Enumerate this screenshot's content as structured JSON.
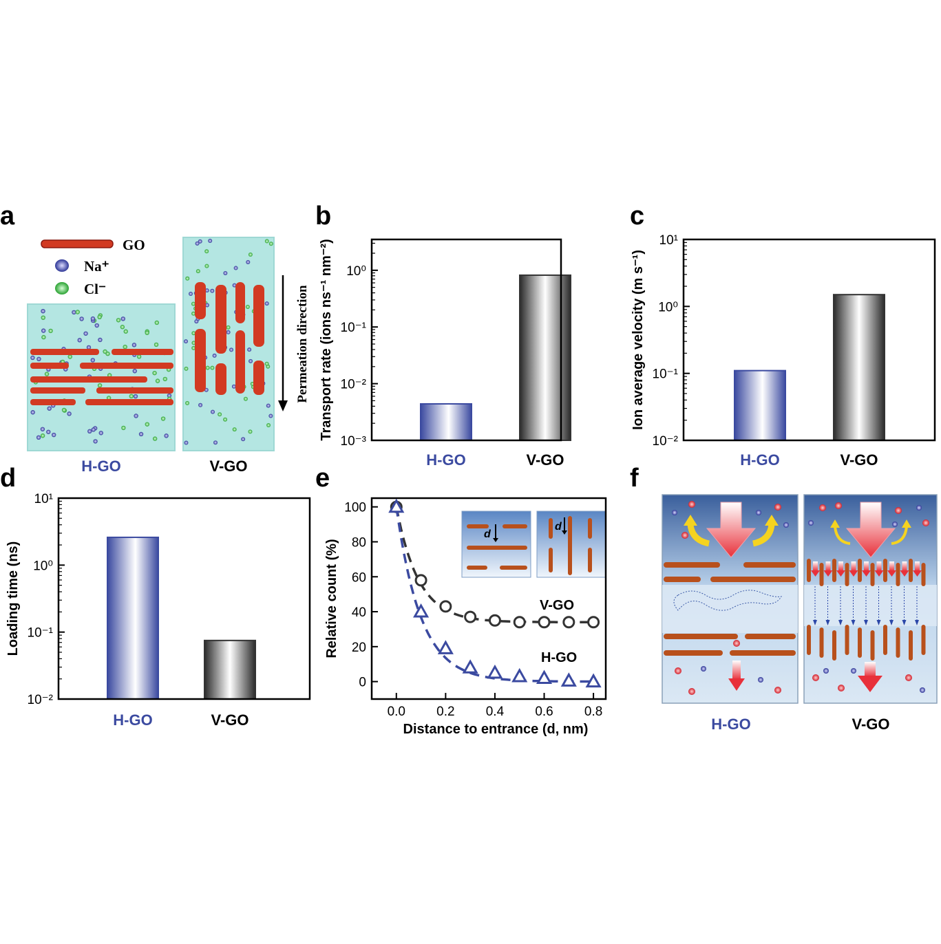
{
  "panels": {
    "a": {
      "letter": "a",
      "legend": [
        {
          "label": "GO",
          "color": "#d23a22"
        },
        {
          "label": "Na⁺",
          "color": "#3a44a8"
        },
        {
          "label": "Cl⁻",
          "color": "#3aba44"
        }
      ],
      "arrow_label": "Permeation direction",
      "labels": [
        "H-GO",
        "V-GO"
      ],
      "colors": {
        "water": "#b4e6e2",
        "hgo_label": "#3b4aa0"
      }
    },
    "f": {
      "letter": "f",
      "labels": [
        "H-GO",
        "V-GO"
      ]
    }
  },
  "chart_data": [
    {
      "id": "b",
      "letter": "b",
      "type": "bar",
      "categories": [
        "H-GO",
        "V-GO"
      ],
      "values": [
        0.0044,
        0.82
      ],
      "ylabel": "Transport rate (ions ns⁻¹ nm⁻²)",
      "yscale": "log",
      "ylim": [
        0.001,
        3.5
      ],
      "yticks": [
        "10⁻³",
        "10⁻²",
        "10⁻¹",
        "10⁰"
      ],
      "grid": false,
      "colors": {
        "hgo": "#3b4aa0",
        "vgo": "#333333"
      }
    },
    {
      "id": "c",
      "letter": "c",
      "type": "bar",
      "categories": [
        "H-GO",
        "V-GO"
      ],
      "values": [
        0.11,
        1.5
      ],
      "ylabel": "Ion average velocity (m s⁻¹)",
      "yscale": "log",
      "ylim": [
        0.01,
        10
      ],
      "yticks": [
        "10⁻²",
        "10⁻¹",
        "10⁰",
        "10¹"
      ],
      "grid": false,
      "colors": {
        "hgo": "#3b4aa0",
        "vgo": "#333333"
      }
    },
    {
      "id": "d",
      "letter": "d",
      "type": "bar",
      "categories": [
        "H-GO",
        "V-GO"
      ],
      "values": [
        2.6,
        0.075
      ],
      "ylabel": "Loading time (ns)",
      "yscale": "log",
      "ylim": [
        0.01,
        10
      ],
      "yticks": [
        "10⁻²",
        "10⁻¹",
        "10⁰",
        "10¹"
      ],
      "grid": false,
      "colors": {
        "hgo": "#3b4aa0",
        "vgo": "#333333"
      }
    },
    {
      "id": "e",
      "letter": "e",
      "type": "scatter",
      "xlabel": "Distance to entrance (d, nm)",
      "ylabel": "Relative count (%)",
      "xlim": [
        -0.1,
        0.85
      ],
      "ylim": [
        -10,
        105
      ],
      "xticks": [
        "0.0",
        "0.2",
        "0.4",
        "0.6",
        "0.8"
      ],
      "yticks": [
        "0",
        "20",
        "40",
        "60",
        "80",
        "100"
      ],
      "inset_label": "d",
      "grid": false,
      "series": [
        {
          "name": "V-GO",
          "marker": "circle",
          "color": "#333333",
          "x": [
            0,
            0.1,
            0.2,
            0.3,
            0.4,
            0.5,
            0.6,
            0.7,
            0.8
          ],
          "y": [
            100,
            58,
            43,
            37,
            35,
            34,
            34,
            34,
            34
          ]
        },
        {
          "name": "H-GO",
          "marker": "triangle",
          "color": "#3b4aa0",
          "x": [
            0,
            0.1,
            0.2,
            0.3,
            0.4,
            0.5,
            0.6,
            0.7,
            0.8
          ],
          "y": [
            100,
            40,
            19,
            8,
            5,
            3,
            2,
            0.5,
            0
          ]
        }
      ]
    }
  ]
}
